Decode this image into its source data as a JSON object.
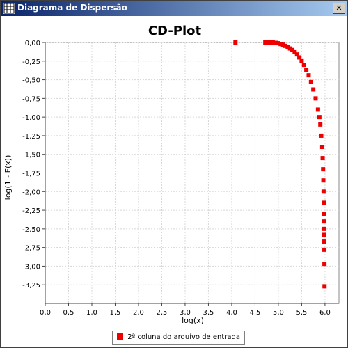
{
  "window": {
    "title": "Diagrama de Dispersão",
    "app_icon": "chart-app-icon",
    "close_label": "✕",
    "close_icon": "close-icon"
  },
  "colors": {
    "series": "#ee0000",
    "titlebar_start": "#0a246a",
    "titlebar_end": "#a6caf0",
    "grid": "#d8d8d8"
  },
  "chart_data": {
    "type": "scatter",
    "title": "CD-Plot",
    "xlabel": "log(x)",
    "ylabel": "log(1 - F(x))",
    "xlim": [
      0.0,
      6.3
    ],
    "ylim": [
      -3.5,
      0.0
    ],
    "grid": true,
    "legend_position": "bottom",
    "xticks": [
      "0,0",
      "0,5",
      "1,0",
      "1,5",
      "2,0",
      "2,5",
      "3,0",
      "3,5",
      "4,0",
      "4,5",
      "5,0",
      "5,5",
      "6,0"
    ],
    "yticks": [
      "0,00",
      "-0,25",
      "-0,50",
      "-0,75",
      "-1,00",
      "-1,25",
      "-1,50",
      "-1,75",
      "-2,00",
      "-2,25",
      "-2,50",
      "-2,75",
      "-3,00",
      "-3,25"
    ],
    "series": [
      {
        "name": "2ª coluna do arquivo de entrada",
        "points": [
          {
            "x": 4.08,
            "y": 0.0
          },
          {
            "x": 4.72,
            "y": 0.0
          },
          {
            "x": 4.8,
            "y": 0.0
          },
          {
            "x": 4.88,
            "y": 0.0
          },
          {
            "x": 4.95,
            "y": -0.005
          },
          {
            "x": 5.0,
            "y": -0.01
          },
          {
            "x": 5.05,
            "y": -0.02
          },
          {
            "x": 5.1,
            "y": -0.03
          },
          {
            "x": 5.15,
            "y": -0.045
          },
          {
            "x": 5.2,
            "y": -0.06
          },
          {
            "x": 5.25,
            "y": -0.08
          },
          {
            "x": 5.3,
            "y": -0.1
          },
          {
            "x": 5.35,
            "y": -0.13
          },
          {
            "x": 5.4,
            "y": -0.16
          },
          {
            "x": 5.45,
            "y": -0.2
          },
          {
            "x": 5.5,
            "y": -0.25
          },
          {
            "x": 5.55,
            "y": -0.3
          },
          {
            "x": 5.6,
            "y": -0.37
          },
          {
            "x": 5.65,
            "y": -0.44
          },
          {
            "x": 5.7,
            "y": -0.53
          },
          {
            "x": 5.75,
            "y": -0.63
          },
          {
            "x": 5.8,
            "y": -0.75
          },
          {
            "x": 5.85,
            "y": -0.9
          },
          {
            "x": 5.88,
            "y": -1.0
          },
          {
            "x": 5.9,
            "y": -1.1
          },
          {
            "x": 5.92,
            "y": -1.25
          },
          {
            "x": 5.94,
            "y": -1.4
          },
          {
            "x": 5.95,
            "y": -1.55
          },
          {
            "x": 5.96,
            "y": -1.7
          },
          {
            "x": 5.965,
            "y": -1.85
          },
          {
            "x": 5.97,
            "y": -2.0
          },
          {
            "x": 5.975,
            "y": -2.15
          },
          {
            "x": 5.978,
            "y": -2.3
          },
          {
            "x": 5.98,
            "y": -2.4
          },
          {
            "x": 5.982,
            "y": -2.5
          },
          {
            "x": 5.985,
            "y": -2.58
          },
          {
            "x": 5.985,
            "y": -2.67
          },
          {
            "x": 5.987,
            "y": -2.78
          },
          {
            "x": 5.988,
            "y": -2.97
          },
          {
            "x": 5.99,
            "y": -3.27
          }
        ]
      }
    ]
  }
}
